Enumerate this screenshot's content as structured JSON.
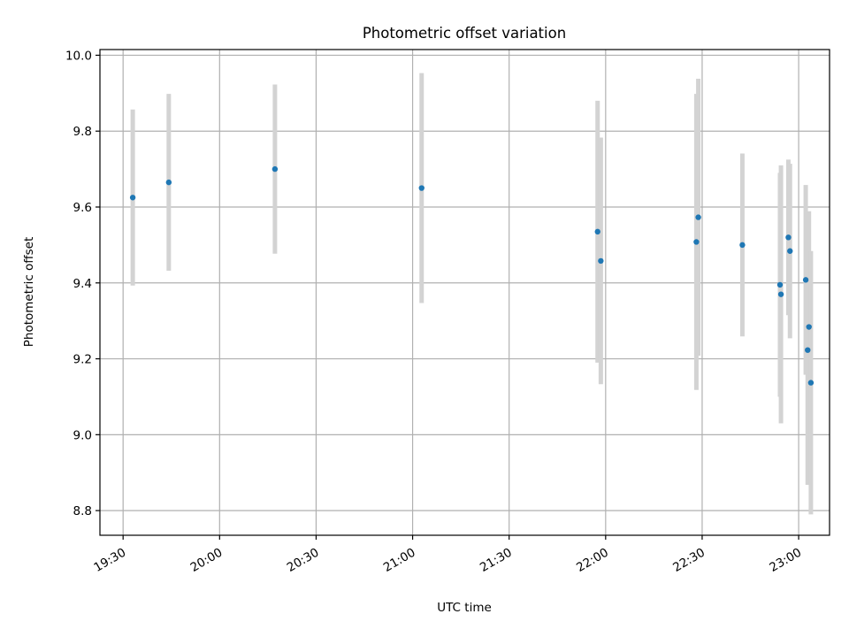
{
  "chart_data": {
    "type": "scatter",
    "title": "Photometric offset variation",
    "xlabel": "UTC time",
    "ylabel": "Photometric offset",
    "x_ticks": [
      "19:30",
      "20:00",
      "20:30",
      "21:00",
      "21:30",
      "22:00",
      "22:30",
      "23:00"
    ],
    "x_tick_values": [
      1170,
      1200,
      1230,
      1260,
      1290,
      1320,
      1350,
      1380
    ],
    "xlim": [
      1162.8,
      1389.6
    ],
    "y_ticks": [
      "8.8",
      "9.0",
      "9.2",
      "9.4",
      "9.6",
      "9.8",
      "10.0"
    ],
    "y_tick_values": [
      8.8,
      9.0,
      9.2,
      9.4,
      9.6,
      9.8,
      10.0
    ],
    "ylim": [
      8.735,
      10.015
    ],
    "grid": true,
    "colors": {
      "point": "#1f77b4",
      "errorbar": "#d3d3d3"
    },
    "x_units": "minutes after midnight UTC",
    "points": [
      {
        "x": 1173.0,
        "y": 9.625,
        "err": 0.232
      },
      {
        "x": 1184.2,
        "y": 9.665,
        "err": 0.233
      },
      {
        "x": 1217.2,
        "y": 9.7,
        "err": 0.223
      },
      {
        "x": 1262.8,
        "y": 9.65,
        "err": 0.303
      },
      {
        "x": 1317.5,
        "y": 9.535,
        "err": 0.345
      },
      {
        "x": 1318.5,
        "y": 9.458,
        "err": 0.325
      },
      {
        "x": 1348.2,
        "y": 9.508,
        "err": 0.39
      },
      {
        "x": 1348.8,
        "y": 9.573,
        "err": 0.365
      },
      {
        "x": 1362.5,
        "y": 9.5,
        "err": 0.241
      },
      {
        "x": 1374.2,
        "y": 9.395,
        "err": 0.295
      },
      {
        "x": 1374.5,
        "y": 9.37,
        "err": 0.34
      },
      {
        "x": 1376.8,
        "y": 9.52,
        "err": 0.205
      },
      {
        "x": 1377.3,
        "y": 9.484,
        "err": 0.23
      },
      {
        "x": 1382.2,
        "y": 9.408,
        "err": 0.25
      },
      {
        "x": 1382.8,
        "y": 9.223,
        "err": 0.355
      },
      {
        "x": 1383.2,
        "y": 9.284,
        "err": 0.305
      },
      {
        "x": 1383.8,
        "y": 9.137,
        "err": 0.347
      }
    ]
  }
}
